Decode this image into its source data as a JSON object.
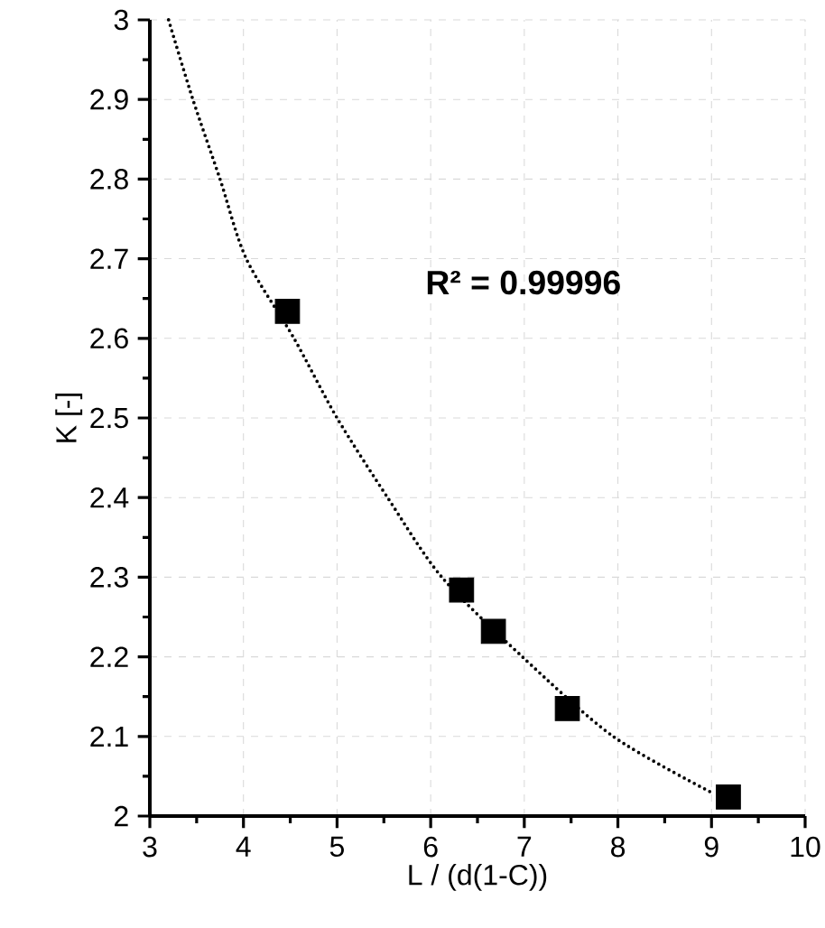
{
  "chart_data": {
    "type": "scatter",
    "xlabel": "L / (d(1-C))",
    "ylabel": "K [-]",
    "annotations": [
      "R² = 0.99996"
    ],
    "series": [
      {
        "color": "#000000",
        "marker": "square",
        "x": [
          4.47,
          6.33,
          6.67,
          7.46,
          9.18
        ],
        "values": [
          2.634,
          2.284,
          2.232,
          2.135,
          2.024
        ]
      },
      {
        "type": "line",
        "color": "#000000",
        "marker": "none",
        "line_style": "dotted",
        "x": [
          3.2,
          3.46,
          3.75,
          4.03,
          4.54,
          5.0,
          5.54,
          6.12,
          6.98,
          7.95,
          9.01
        ],
        "values": [
          3.0,
          2.9,
          2.8,
          2.7,
          2.6,
          2.5,
          2.4,
          2.3,
          2.2,
          2.1,
          2.029
        ]
      }
    ],
    "xlim": [
      3,
      10
    ],
    "ylim": [
      2,
      3
    ],
    "xticks": [
      3,
      4,
      5,
      6,
      7,
      8,
      9,
      10
    ],
    "yticks": [
      2,
      2.1,
      2.2,
      2.3,
      2.4,
      2.5,
      2.6,
      2.7,
      2.8,
      2.9,
      3
    ],
    "grid": true
  }
}
